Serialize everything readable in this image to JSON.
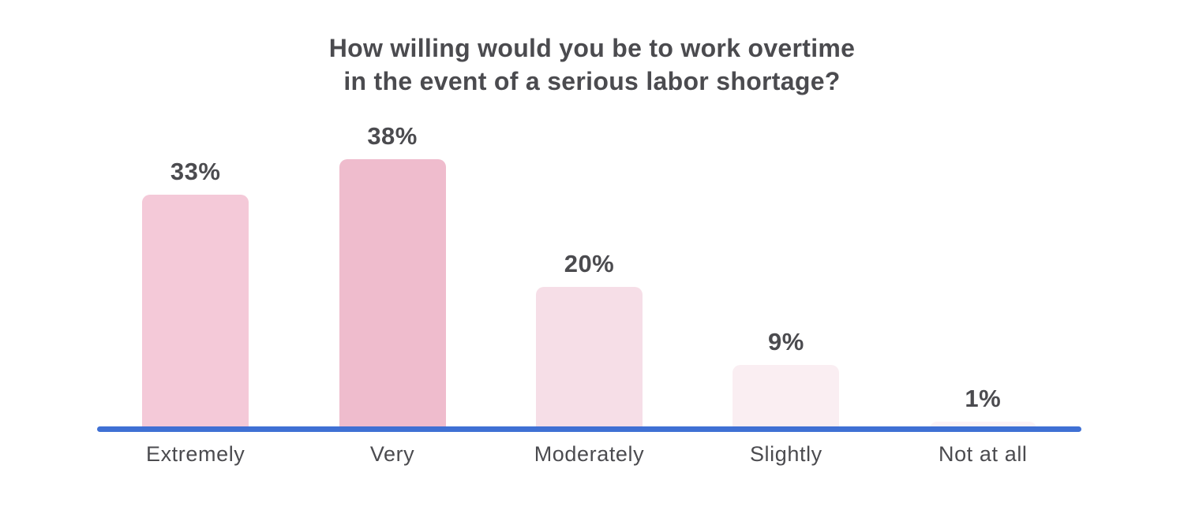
{
  "chart_data": {
    "type": "bar",
    "title": "How willing would you be to work overtime in the event of a serious labor shortage?",
    "title_lines": [
      "How willing would you be to work overtime",
      "in the event of a serious labor shortage?"
    ],
    "categories": [
      "Extremely",
      "Very",
      "Moderately",
      "Slightly",
      "Not at all"
    ],
    "values": [
      33,
      38,
      20,
      9,
      1
    ],
    "value_labels": [
      "33%",
      "38%",
      "20%",
      "9%",
      "1%"
    ],
    "unit": "percent",
    "ylim": [
      0,
      40
    ],
    "grid": false,
    "legend": false,
    "data_labels_position": "above-bars",
    "bar_colors": [
      "#f4c9d8",
      "#efbccd",
      "#f6dee7",
      "#faeef2",
      "#fdf3f6"
    ],
    "baseline_color": "#3f70d4",
    "text_color": "#4b4b4f",
    "background_color": "#ffffff"
  }
}
